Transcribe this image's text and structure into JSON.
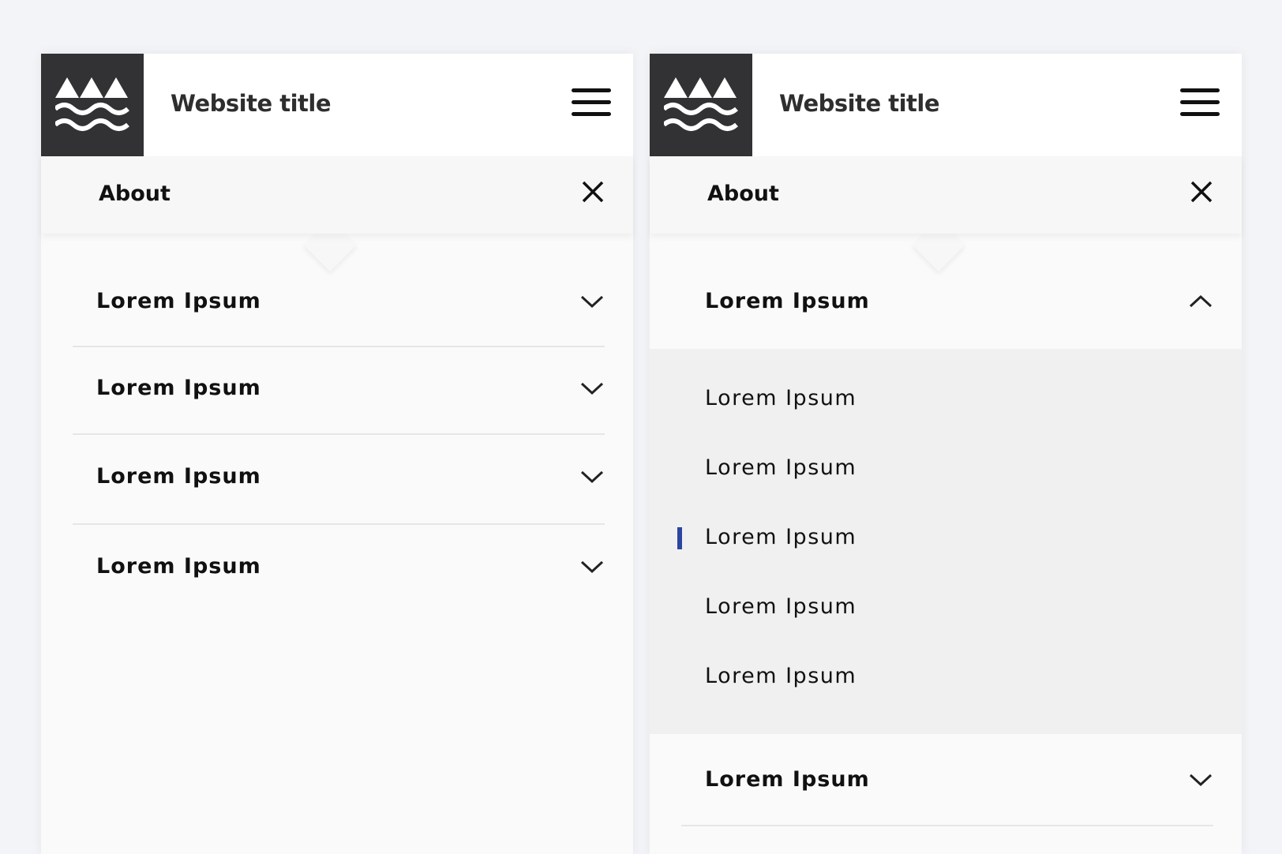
{
  "colors": {
    "logo_bg": "#323234",
    "active_marker": "#2c45a0",
    "background": "#f3f4f7"
  },
  "panels": [
    {
      "header": {
        "title": "Website title",
        "logo_icon": "mountains-waves-logo",
        "menu_icon": "hamburger-icon"
      },
      "about": {
        "label": "About",
        "close_icon": "close-icon"
      },
      "items": [
        {
          "label": "Lorem Ipsum",
          "expanded": false
        },
        {
          "label": "Lorem Ipsum",
          "expanded": false
        },
        {
          "label": "Lorem Ipsum",
          "expanded": false
        },
        {
          "label": "Lorem Ipsum",
          "expanded": false
        }
      ]
    },
    {
      "header": {
        "title": "Website title",
        "logo_icon": "mountains-waves-logo",
        "menu_icon": "hamburger-icon"
      },
      "about": {
        "label": "About",
        "close_icon": "close-icon"
      },
      "items": [
        {
          "label": "Lorem Ipsum",
          "expanded": true,
          "subitems": [
            "Lorem Ipsum",
            "Lorem Ipsum",
            "Lorem Ipsum",
            "Lorem Ipsum",
            "Lorem Ipsum"
          ],
          "active_subitem": 2
        },
        {
          "label": "Lorem Ipsum",
          "expanded": false
        }
      ]
    }
  ]
}
